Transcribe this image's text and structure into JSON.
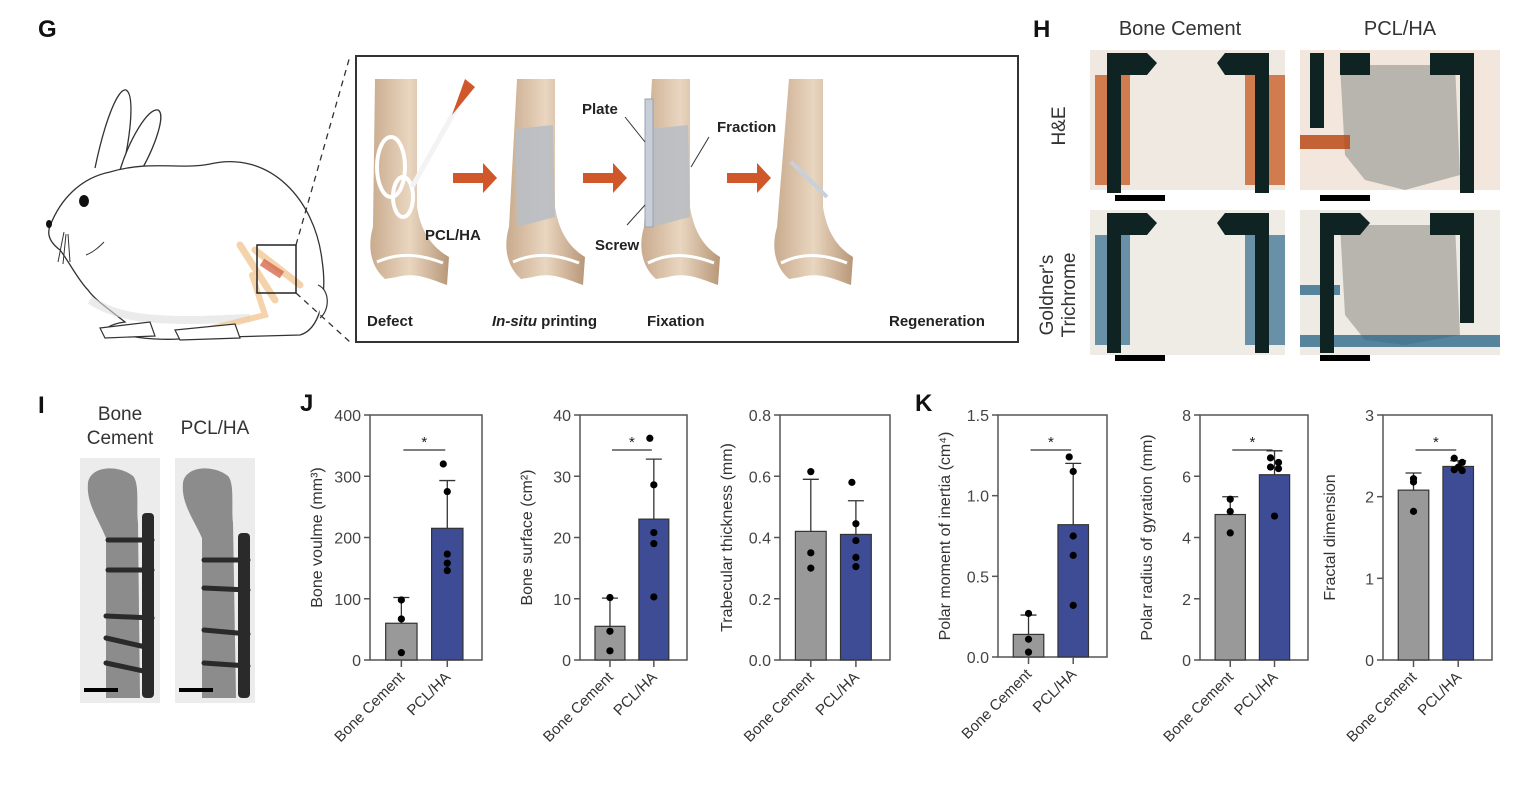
{
  "panels": {
    "G": {
      "letter": "G",
      "steps": [
        {
          "label": "Defect"
        },
        {
          "label_italic": "In-situ",
          "label_rest": " printing"
        },
        {
          "label": "Fixation"
        },
        {
          "label": "Regeneration"
        }
      ],
      "callouts": {
        "pcl_ha": "PCL/HA",
        "plate": "Plate",
        "screw": "Screw",
        "fraction": "Fraction"
      },
      "arrow_color": "#d0572a"
    },
    "H": {
      "letter": "H",
      "columns": [
        "Bone Cement",
        "PCL/HA"
      ],
      "rows": [
        "H&E",
        "Goldner's Trichrome"
      ]
    },
    "I": {
      "letter": "I",
      "columns": [
        "Bone Cement",
        "PCL/HA"
      ]
    },
    "J": {
      "letter": "J"
    },
    "K": {
      "letter": "K"
    }
  },
  "colors": {
    "bone_cement": "#999999",
    "pcl_ha": "#3d4c94",
    "axis": "#555555"
  },
  "chart_data": [
    {
      "panel": "J",
      "type": "bar",
      "title": "",
      "ylabel": "Bone voulme (mm³)",
      "xlabel": "",
      "categories": [
        "Bone Cement",
        "PCL/HA"
      ],
      "values": [
        60,
        215
      ],
      "error": [
        42,
        78
      ],
      "points": [
        [
          98,
          67,
          12
        ],
        [
          320,
          275,
          173,
          158,
          146
        ]
      ],
      "ylim": [
        0,
        400
      ],
      "yticks": [
        0,
        100,
        200,
        300,
        400
      ],
      "significance": "*",
      "grid": false
    },
    {
      "panel": "J",
      "type": "bar",
      "title": "",
      "ylabel": "Bone surface (cm²)",
      "xlabel": "",
      "categories": [
        "Bone Cement",
        "PCL/HA"
      ],
      "values": [
        5.5,
        23
      ],
      "error": [
        4.6,
        9.8
      ],
      "points": [
        [
          10.2,
          4.7,
          1.5
        ],
        [
          36.2,
          28.6,
          20.8,
          19.0,
          10.3
        ]
      ],
      "ylim": [
        0,
        40
      ],
      "yticks": [
        0,
        10,
        20,
        30,
        40
      ],
      "significance": "*",
      "grid": false
    },
    {
      "panel": "J",
      "type": "bar",
      "title": "",
      "ylabel": "Trabecular thickness (mm)",
      "xlabel": "",
      "categories": [
        "Bone Cement",
        "PCL/HA"
      ],
      "values": [
        0.42,
        0.41
      ],
      "error": [
        0.17,
        0.11
      ],
      "points": [
        [
          0.615,
          0.35,
          0.3
        ],
        [
          0.58,
          0.445,
          0.39,
          0.335,
          0.305
        ]
      ],
      "ylim": [
        0,
        0.8
      ],
      "yticks": [
        "0.0",
        "0.2",
        "0.4",
        "0.6",
        "0.8"
      ],
      "significance": "",
      "grid": false
    },
    {
      "panel": "K",
      "type": "bar",
      "title": "",
      "ylabel": "Polar moment of inertia (cm⁴)",
      "xlabel": "",
      "categories": [
        "Bone Cement",
        "PCL/HA"
      ],
      "values": [
        0.14,
        0.82
      ],
      "error": [
        0.12,
        0.38
      ],
      "points": [
        [
          0.27,
          0.11,
          0.03
        ],
        [
          1.24,
          1.15,
          0.75,
          0.63,
          0.32
        ]
      ],
      "ylim": [
        0,
        1.5
      ],
      "yticks": [
        "0.0",
        "0.5",
        "1.0",
        "1.5"
      ],
      "significance": "*",
      "grid": false
    },
    {
      "panel": "K",
      "type": "bar",
      "title": "",
      "ylabel": "Polar radius of gyration (mm)",
      "xlabel": "",
      "categories": [
        "Bone Cement",
        "PCL/HA"
      ],
      "values": [
        4.75,
        6.05
      ],
      "error": [
        0.58,
        0.78
      ],
      "points": [
        [
          5.25,
          4.85,
          4.15
        ],
        [
          6.6,
          6.45,
          6.3,
          6.25,
          4.7
        ]
      ],
      "ylim": [
        0,
        8
      ],
      "yticks": [
        0,
        2,
        4,
        6,
        8
      ],
      "significance": "*",
      "grid": false
    },
    {
      "panel": "K",
      "type": "bar",
      "title": "",
      "ylabel": "Fractal dimension",
      "xlabel": "",
      "categories": [
        "Bone Cement",
        "PCL/HA"
      ],
      "values": [
        2.08,
        2.37
      ],
      "error": [
        0.21,
        0.07
      ],
      "points": [
        [
          2.22,
          2.18,
          1.82
        ],
        [
          2.47,
          2.42,
          2.36,
          2.32,
          2.33
        ]
      ],
      "ylim": [
        0,
        3
      ],
      "yticks": [
        0,
        1,
        2,
        3
      ],
      "significance": "*",
      "grid": false
    }
  ]
}
